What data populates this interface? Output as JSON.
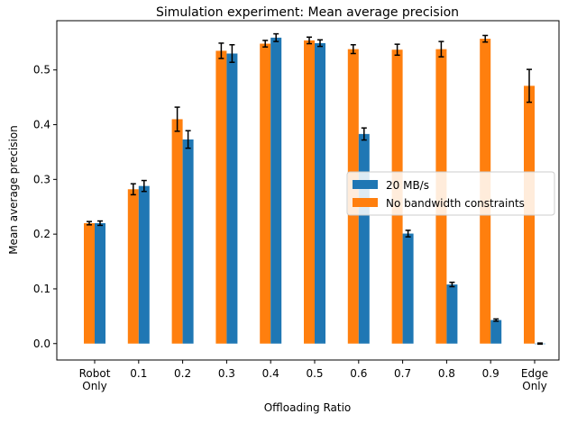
{
  "chart_data": {
    "type": "bar",
    "title": "Simulation experiment: Mean average precision",
    "xlabel": "Offloading Ratio",
    "ylabel": "Mean average precision",
    "categories": [
      "Robot\nOnly",
      "0.1",
      "0.2",
      "0.3",
      "0.4",
      "0.5",
      "0.6",
      "0.7",
      "0.8",
      "0.9",
      "Edge\nOnly"
    ],
    "ylim": [
      -0.03,
      0.59
    ],
    "yticks": [
      0.0,
      0.1,
      0.2,
      0.3,
      0.4,
      0.5
    ],
    "ytick_labels": [
      "0.0",
      "0.1",
      "0.2",
      "0.3",
      "0.4",
      "0.5"
    ],
    "legend_position": "center-right",
    "grid": false,
    "series": [
      {
        "name": "No bandwidth constraints",
        "color": "#ff7f0e",
        "values": [
          0.22,
          0.282,
          0.41,
          0.535,
          0.548,
          0.554,
          0.538,
          0.537,
          0.538,
          0.557,
          0.471
        ],
        "errors": [
          0.003,
          0.01,
          0.022,
          0.014,
          0.006,
          0.006,
          0.008,
          0.01,
          0.014,
          0.006,
          0.03
        ]
      },
      {
        "name": "20 MB/s",
        "color": "#1f77b4",
        "values": [
          0.22,
          0.288,
          0.373,
          0.53,
          0.559,
          0.549,
          0.383,
          0.201,
          0.108,
          0.043,
          0.0
        ],
        "errors": [
          0.004,
          0.01,
          0.016,
          0.016,
          0.007,
          0.006,
          0.011,
          0.006,
          0.004,
          0.002,
          0.001
        ]
      }
    ],
    "legend_order": [
      "20 MB/s",
      "No bandwidth constraints"
    ]
  }
}
